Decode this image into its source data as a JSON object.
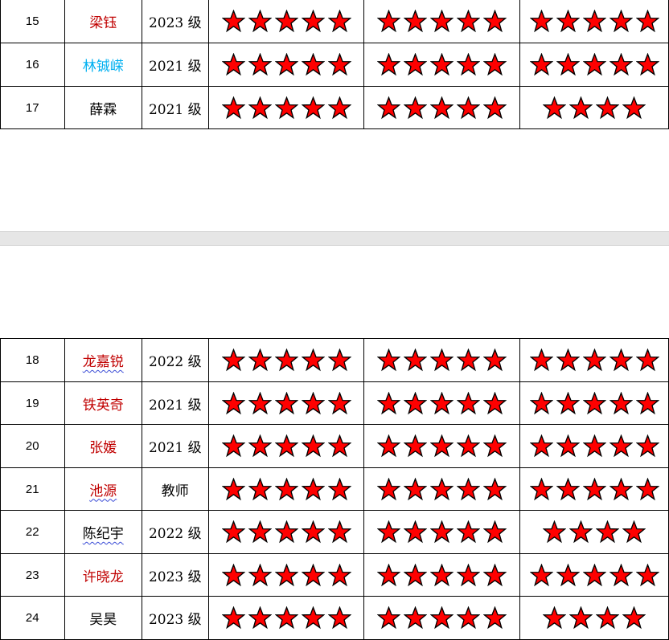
{
  "colors": {
    "red_name": "#c00000",
    "blue_name": "#00b0f0",
    "black_name": "#000000",
    "star_fill": "#ff0000",
    "star_stroke": "#000000"
  },
  "tables": [
    {
      "rows": [
        {
          "no": "15",
          "name": "梁钰",
          "name_color": "red",
          "grade": "2023 级",
          "stars": [
            5,
            5,
            5
          ],
          "squiggle": false
        },
        {
          "no": "16",
          "name": "林铖嵘",
          "name_color": "blue",
          "grade": "2021 级",
          "stars": [
            5,
            5,
            5
          ],
          "squiggle": false
        },
        {
          "no": "17",
          "name": "薛霖",
          "name_color": "black",
          "grade": "2021 级",
          "stars": [
            5,
            5,
            4
          ],
          "squiggle": false
        }
      ]
    },
    {
      "rows": [
        {
          "no": "18",
          "name": "龙嘉锐",
          "name_color": "red",
          "grade": "2022 级",
          "stars": [
            5,
            5,
            5
          ],
          "squiggle": true
        },
        {
          "no": "19",
          "name": "铁英奇",
          "name_color": "red",
          "grade": "2021 级",
          "stars": [
            5,
            5,
            5
          ],
          "squiggle": false
        },
        {
          "no": "20",
          "name": "张媛",
          "name_color": "red",
          "grade": "2021 级",
          "stars": [
            5,
            5,
            5
          ],
          "squiggle": false
        },
        {
          "no": "21",
          "name": "池源",
          "name_color": "red",
          "grade": "教师",
          "stars": [
            5,
            5,
            5
          ],
          "squiggle": true
        },
        {
          "no": "22",
          "name": "陈纪宇",
          "name_color": "black",
          "grade": "2022 级",
          "stars": [
            5,
            5,
            4
          ],
          "squiggle": true
        },
        {
          "no": "23",
          "name": "许晓龙",
          "name_color": "red",
          "grade": "2023 级",
          "stars": [
            5,
            5,
            5
          ],
          "squiggle": false
        },
        {
          "no": "24",
          "name": "吴昊",
          "name_color": "black",
          "grade": "2023 级",
          "stars": [
            5,
            5,
            4
          ],
          "squiggle": false
        }
      ]
    }
  ]
}
